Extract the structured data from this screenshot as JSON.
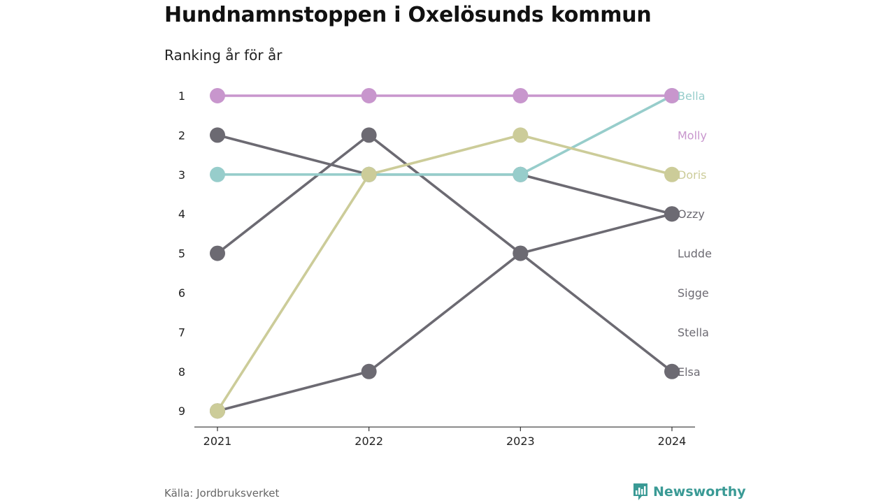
{
  "header": {
    "title": "Hundnamnstoppen i Oxelösunds kommun",
    "subtitle": "Ranking år för år"
  },
  "footer": {
    "source": "Källa: Jordbruksverket",
    "brand": "Newsworthy",
    "brand_icon": "chart-bubble-icon"
  },
  "colors": {
    "Bella": "#97cdcb",
    "Molly": "#c896cd",
    "Doris": "#cccc99",
    "other": "#6c6a72",
    "axis": "#333333",
    "brand": "#3a9a95"
  },
  "chart_data": {
    "type": "line",
    "x": [
      2021,
      2022,
      2023,
      2024
    ],
    "ylim": [
      1,
      9
    ],
    "y_ticks": [
      1,
      2,
      3,
      4,
      5,
      6,
      7,
      8,
      9
    ],
    "y_reversed": true,
    "grid": false,
    "series": [
      {
        "name": "Bella",
        "values": [
          3,
          3,
          3,
          1
        ]
      },
      {
        "name": "Molly",
        "values": [
          1,
          1,
          1,
          1
        ]
      },
      {
        "name": "Doris",
        "values": [
          9,
          3,
          2,
          3
        ]
      },
      {
        "name": "Ozzy",
        "values": [
          2,
          3,
          3,
          4
        ]
      },
      {
        "name": "Ludde",
        "values": [
          9,
          8,
          5,
          4
        ]
      },
      {
        "name": "Sigge",
        "values": [
          5,
          2,
          5,
          8
        ]
      },
      {
        "name": "Stella",
        "values": [
          null,
          null,
          null,
          null
        ]
      },
      {
        "name": "Elsa",
        "values": [
          null,
          null,
          null,
          null
        ]
      }
    ],
    "end_labels": [
      {
        "name": "Bella",
        "rank": 1
      },
      {
        "name": "Molly",
        "rank": 2
      },
      {
        "name": "Doris",
        "rank": 3
      },
      {
        "name": "Ozzy",
        "rank": 4
      },
      {
        "name": "Ludde",
        "rank": 5
      },
      {
        "name": "Sigge",
        "rank": 6
      },
      {
        "name": "Stella",
        "rank": 7
      },
      {
        "name": "Elsa",
        "rank": 8
      }
    ]
  }
}
